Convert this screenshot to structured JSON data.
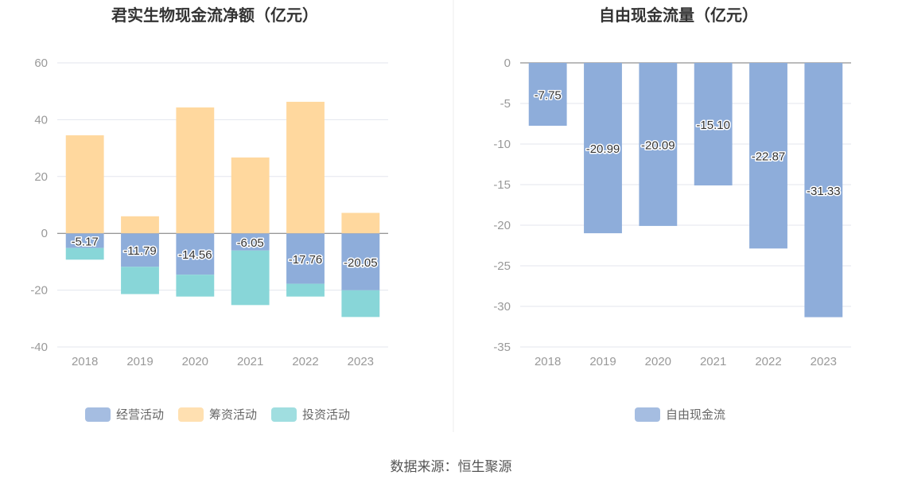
{
  "chart_data": [
    {
      "type": "bar",
      "stacked": true,
      "title": "君实生物现金流净额（亿元）",
      "categories": [
        "2018",
        "2019",
        "2020",
        "2021",
        "2022",
        "2023"
      ],
      "ylim": [
        -40,
        60
      ],
      "yticks": [
        60,
        40,
        20,
        0,
        -20,
        -40
      ],
      "grid": true,
      "legend_position": "bottom",
      "series": [
        {
          "name": "经营活动",
          "color": "#8eadda",
          "values": [
            -5.17,
            -11.79,
            -14.56,
            -6.05,
            -17.76,
            -20.05
          ],
          "labels": [
            "-5.17",
            "-11.79",
            "-14.56",
            "-6.05",
            "-17.76",
            "-20.05"
          ]
        },
        {
          "name": "筹资活动",
          "color": "#ffd89e",
          "values": [
            34.5,
            6.0,
            44.3,
            26.7,
            46.3,
            7.2
          ]
        },
        {
          "name": "投资活动",
          "color": "#88d6d8",
          "values": [
            -4.1,
            -9.6,
            -7.7,
            -19.2,
            -4.5,
            -9.4
          ]
        }
      ]
    },
    {
      "type": "bar",
      "title": "自由现金流量（亿元）",
      "categories": [
        "2018",
        "2019",
        "2020",
        "2021",
        "2022",
        "2023"
      ],
      "ylim": [
        -35,
        0
      ],
      "yticks": [
        0,
        -5,
        -10,
        -15,
        -20,
        -25,
        -30,
        -35
      ],
      "grid": true,
      "legend_position": "bottom",
      "series": [
        {
          "name": "自由现金流",
          "color": "#8eadda",
          "values": [
            -7.75,
            -20.99,
            -20.09,
            -15.1,
            -22.87,
            -31.33
          ],
          "labels": [
            "-7.75",
            "-20.99",
            "-20.09",
            "-15.10",
            "-22.87",
            "-31.33"
          ]
        }
      ]
    }
  ],
  "footer": {
    "source": "数据来源：恒生聚源"
  }
}
